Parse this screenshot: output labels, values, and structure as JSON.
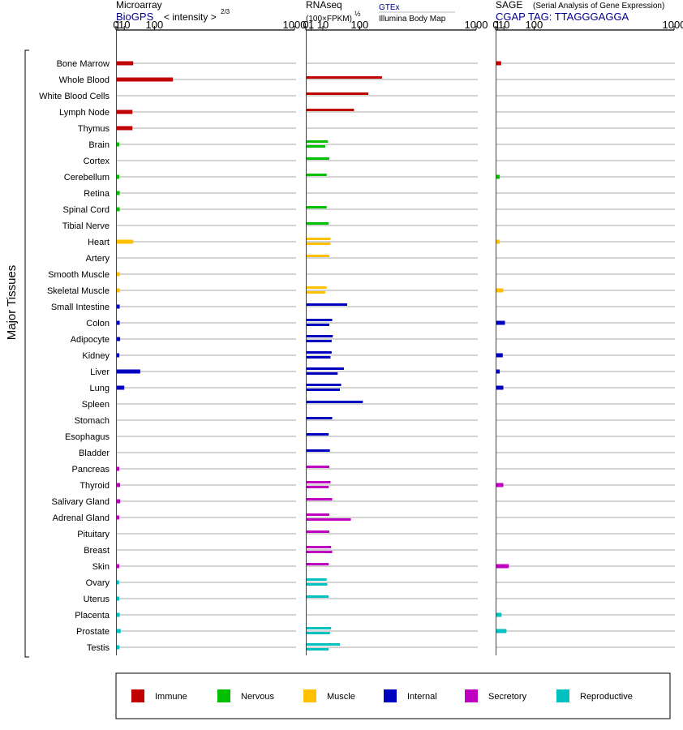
{
  "chart_data": {
    "type": "bar",
    "ylabel": "Major Tissues",
    "tissues": [
      "Bone Marrow",
      "Whole Blood",
      "White Blood Cells",
      "Lymph Node",
      "Thymus",
      "Brain",
      "Cortex",
      "Cerebellum",
      "Retina",
      "Spinal Cord",
      "Tibial Nerve",
      "Heart",
      "Artery",
      "Smooth Muscle",
      "Skeletal Muscle",
      "Small Intestine",
      "Colon",
      "Adipocyte",
      "Kidney",
      "Liver",
      "Lung",
      "Spleen",
      "Stomach",
      "Esophagus",
      "Bladder",
      "Pancreas",
      "Thyroid",
      "Salivary Gland",
      "Adrenal Gland",
      "Pituitary",
      "Breast",
      "Skin",
      "Ovary",
      "Uterus",
      "Placenta",
      "Prostate",
      "Testis"
    ],
    "tissue_groups": [
      "Immune",
      "Immune",
      "Immune",
      "Immune",
      "Immune",
      "Nervous",
      "Nervous",
      "Nervous",
      "Nervous",
      "Nervous",
      "Nervous",
      "Muscle",
      "Muscle",
      "Muscle",
      "Muscle",
      "Internal",
      "Internal",
      "Internal",
      "Internal",
      "Internal",
      "Internal",
      "Internal",
      "Internal",
      "Internal",
      "Internal",
      "Secretory",
      "Secretory",
      "Secretory",
      "Secretory",
      "Secretory",
      "Secretory",
      "Secretory",
      "Reproductive",
      "Reproductive",
      "Reproductive",
      "Reproductive",
      "Reproductive"
    ],
    "group_colors": {
      "Immune": "#c00000",
      "Nervous": "#00c000",
      "Muscle": "#ffc000",
      "Internal": "#0000c0",
      "Secretory": "#c000c0",
      "Reproductive": "#00c0c0"
    },
    "legend": {
      "placement": "bottom",
      "items": [
        "Immune",
        "Nervous",
        "Muscle",
        "Internal",
        "Secretory",
        "Reproductive"
      ]
    },
    "panels": [
      {
        "title": "Microarray",
        "source": "BioGPS",
        "scale_label_prefix": "< intensity >",
        "scale_label_exp": "2/3",
        "ticks": [
          "0",
          "1",
          "10",
          "100",
          "1000"
        ],
        "tick_values": [
          0,
          1,
          10,
          100,
          1000
        ],
        "xlim": [
          0,
          1000
        ],
        "scale": "power 2/3",
        "values": [
          [
            30
          ],
          [
            180
          ],
          [],
          [
            28
          ],
          [
            28
          ],
          [
            2.5
          ],
          [],
          [
            2.5
          ],
          [
            3
          ],
          [
            3
          ],
          [],
          [
            30
          ],
          [],
          [
            3
          ],
          [
            3
          ],
          [
            3
          ],
          [
            3
          ],
          [
            3.5
          ],
          [
            2.5
          ],
          [
            50
          ],
          [
            10
          ],
          [],
          [],
          [],
          [],
          [
            2.5
          ],
          [
            3.5
          ],
          [
            3.7
          ],
          [
            2.5
          ],
          [],
          [],
          [
            2.5
          ],
          [
            2.2
          ],
          [
            2.5
          ],
          [
            3
          ],
          [
            4.3
          ],
          [
            2.7
          ]
        ]
      },
      {
        "title": "RNAseq",
        "source": "GTEx",
        "source_sub": "Illumina Body Map",
        "scale_label_prefix": "(100×FPKM)",
        "scale_label_exp": "½",
        "ticks": [
          "0",
          "1",
          "10",
          "100",
          "1000"
        ],
        "tick_values": [
          0,
          1,
          10,
          100,
          1000
        ],
        "xlim": [
          0,
          1000
        ],
        "scale": "sqrt",
        "values": [
          [],
          [
            200
          ],
          [
            135
          ],
          [
            80
          ],
          [],
          [
            17,
            13
          ],
          [
            19
          ],
          [
            15
          ],
          [],
          [
            15
          ],
          [
            18
          ],
          [
            21,
            21
          ],
          [
            19
          ],
          [],
          [
            15,
            13
          ],
          [
            59
          ],
          [
            24,
            19
          ],
          [
            25,
            23
          ],
          [
            23,
            21
          ],
          [
            50,
            35
          ],
          [
            43,
            40
          ],
          [
            112
          ],
          [
            24
          ],
          [
            18
          ],
          [
            20
          ],
          [
            19
          ],
          [
            21,
            18
          ],
          [
            24
          ],
          [
            19,
            70
          ],
          [
            19
          ],
          [
            22,
            24
          ],
          [
            18
          ],
          [
            15,
            16
          ],
          [
            18
          ],
          [],
          [
            22,
            20
          ],
          [
            40,
            18
          ]
        ]
      },
      {
        "title": "SAGE",
        "title_note": "(Serial Analysis of Gene Expression)",
        "source": "CGAP  TAG: TTAGGGAGGA",
        "ticks": [
          "0",
          "1",
          "10",
          "100",
          "1000"
        ],
        "tick_values": [
          0,
          1,
          10,
          100,
          1000
        ],
        "xlim": [
          0,
          1000
        ],
        "scale": "power 2/3",
        "values": [
          [
            5.5
          ],
          [],
          [],
          [
            0.05
          ],
          [],
          [
            0.05
          ],
          [
            0.03
          ],
          [
            3.5
          ],
          [
            0.03
          ],
          [
            0.05
          ],
          [],
          [
            3.3
          ],
          [],
          [],
          [
            9
          ],
          [],
          [
            12
          ],
          [],
          [
            8
          ],
          [
            3.5
          ],
          [
            9
          ],
          [],
          [],
          [],
          [],
          [
            0.05
          ],
          [
            9
          ],
          [],
          [],
          [],
          [
            0.05
          ],
          [
            20
          ],
          [],
          [],
          [
            6
          ],
          [
            15
          ],
          []
        ]
      }
    ]
  }
}
